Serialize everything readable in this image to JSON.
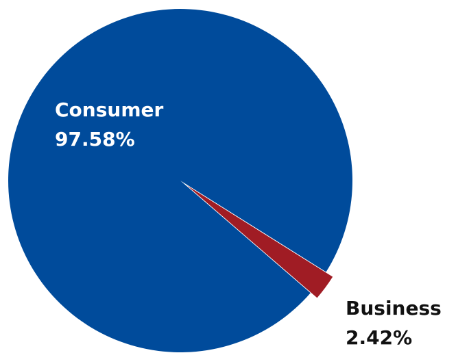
{
  "chart_data": {
    "type": "pie",
    "title": "",
    "slices": [
      {
        "name": "Consumer",
        "value": 97.58,
        "value_label": "97.58%",
        "color": "#004b9b",
        "label_color": "#ffffff"
      },
      {
        "name": "Business",
        "value": 2.42,
        "value_label": "2.42%",
        "color": "#a01c24",
        "label_color": "#111111"
      }
    ],
    "legend": "none",
    "labels_on_chart": true
  }
}
